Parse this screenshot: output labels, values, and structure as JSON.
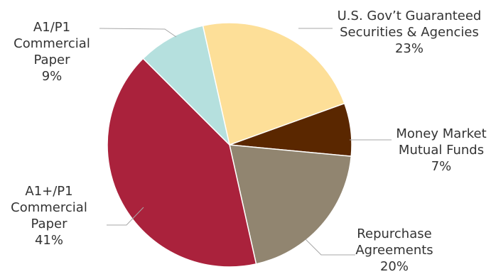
{
  "chart_data": {
    "type": "pie",
    "slices": [
      {
        "label": "U.S. Gov’t Guaranteed Securities & Agencies",
        "lines": [
          "U.S. Gov’t Guaranteed",
          "Securities & Agencies",
          "23%"
        ],
        "value": 23,
        "color": "#fddf98"
      },
      {
        "label": "Money Market Mutual Funds",
        "lines": [
          "Money Market",
          "Mutual Funds",
          "7%"
        ],
        "value": 7,
        "color": "#5a2700"
      },
      {
        "label": "Repurchase Agreements",
        "lines": [
          "Repurchase",
          "Agreements",
          "20%"
        ],
        "value": 20,
        "color": "#918570"
      },
      {
        "label": "A1+/P1 Commercial Paper",
        "lines": [
          "A1+/P1",
          "Commercial",
          "Paper",
          "41%"
        ],
        "value": 41,
        "color": "#aa223c"
      },
      {
        "label": "A1/P1 Commercial Paper",
        "lines": [
          "A1/P1",
          "Commercial",
          "Paper",
          "9%"
        ],
        "value": 9,
        "color": "#b5e0de"
      }
    ]
  }
}
